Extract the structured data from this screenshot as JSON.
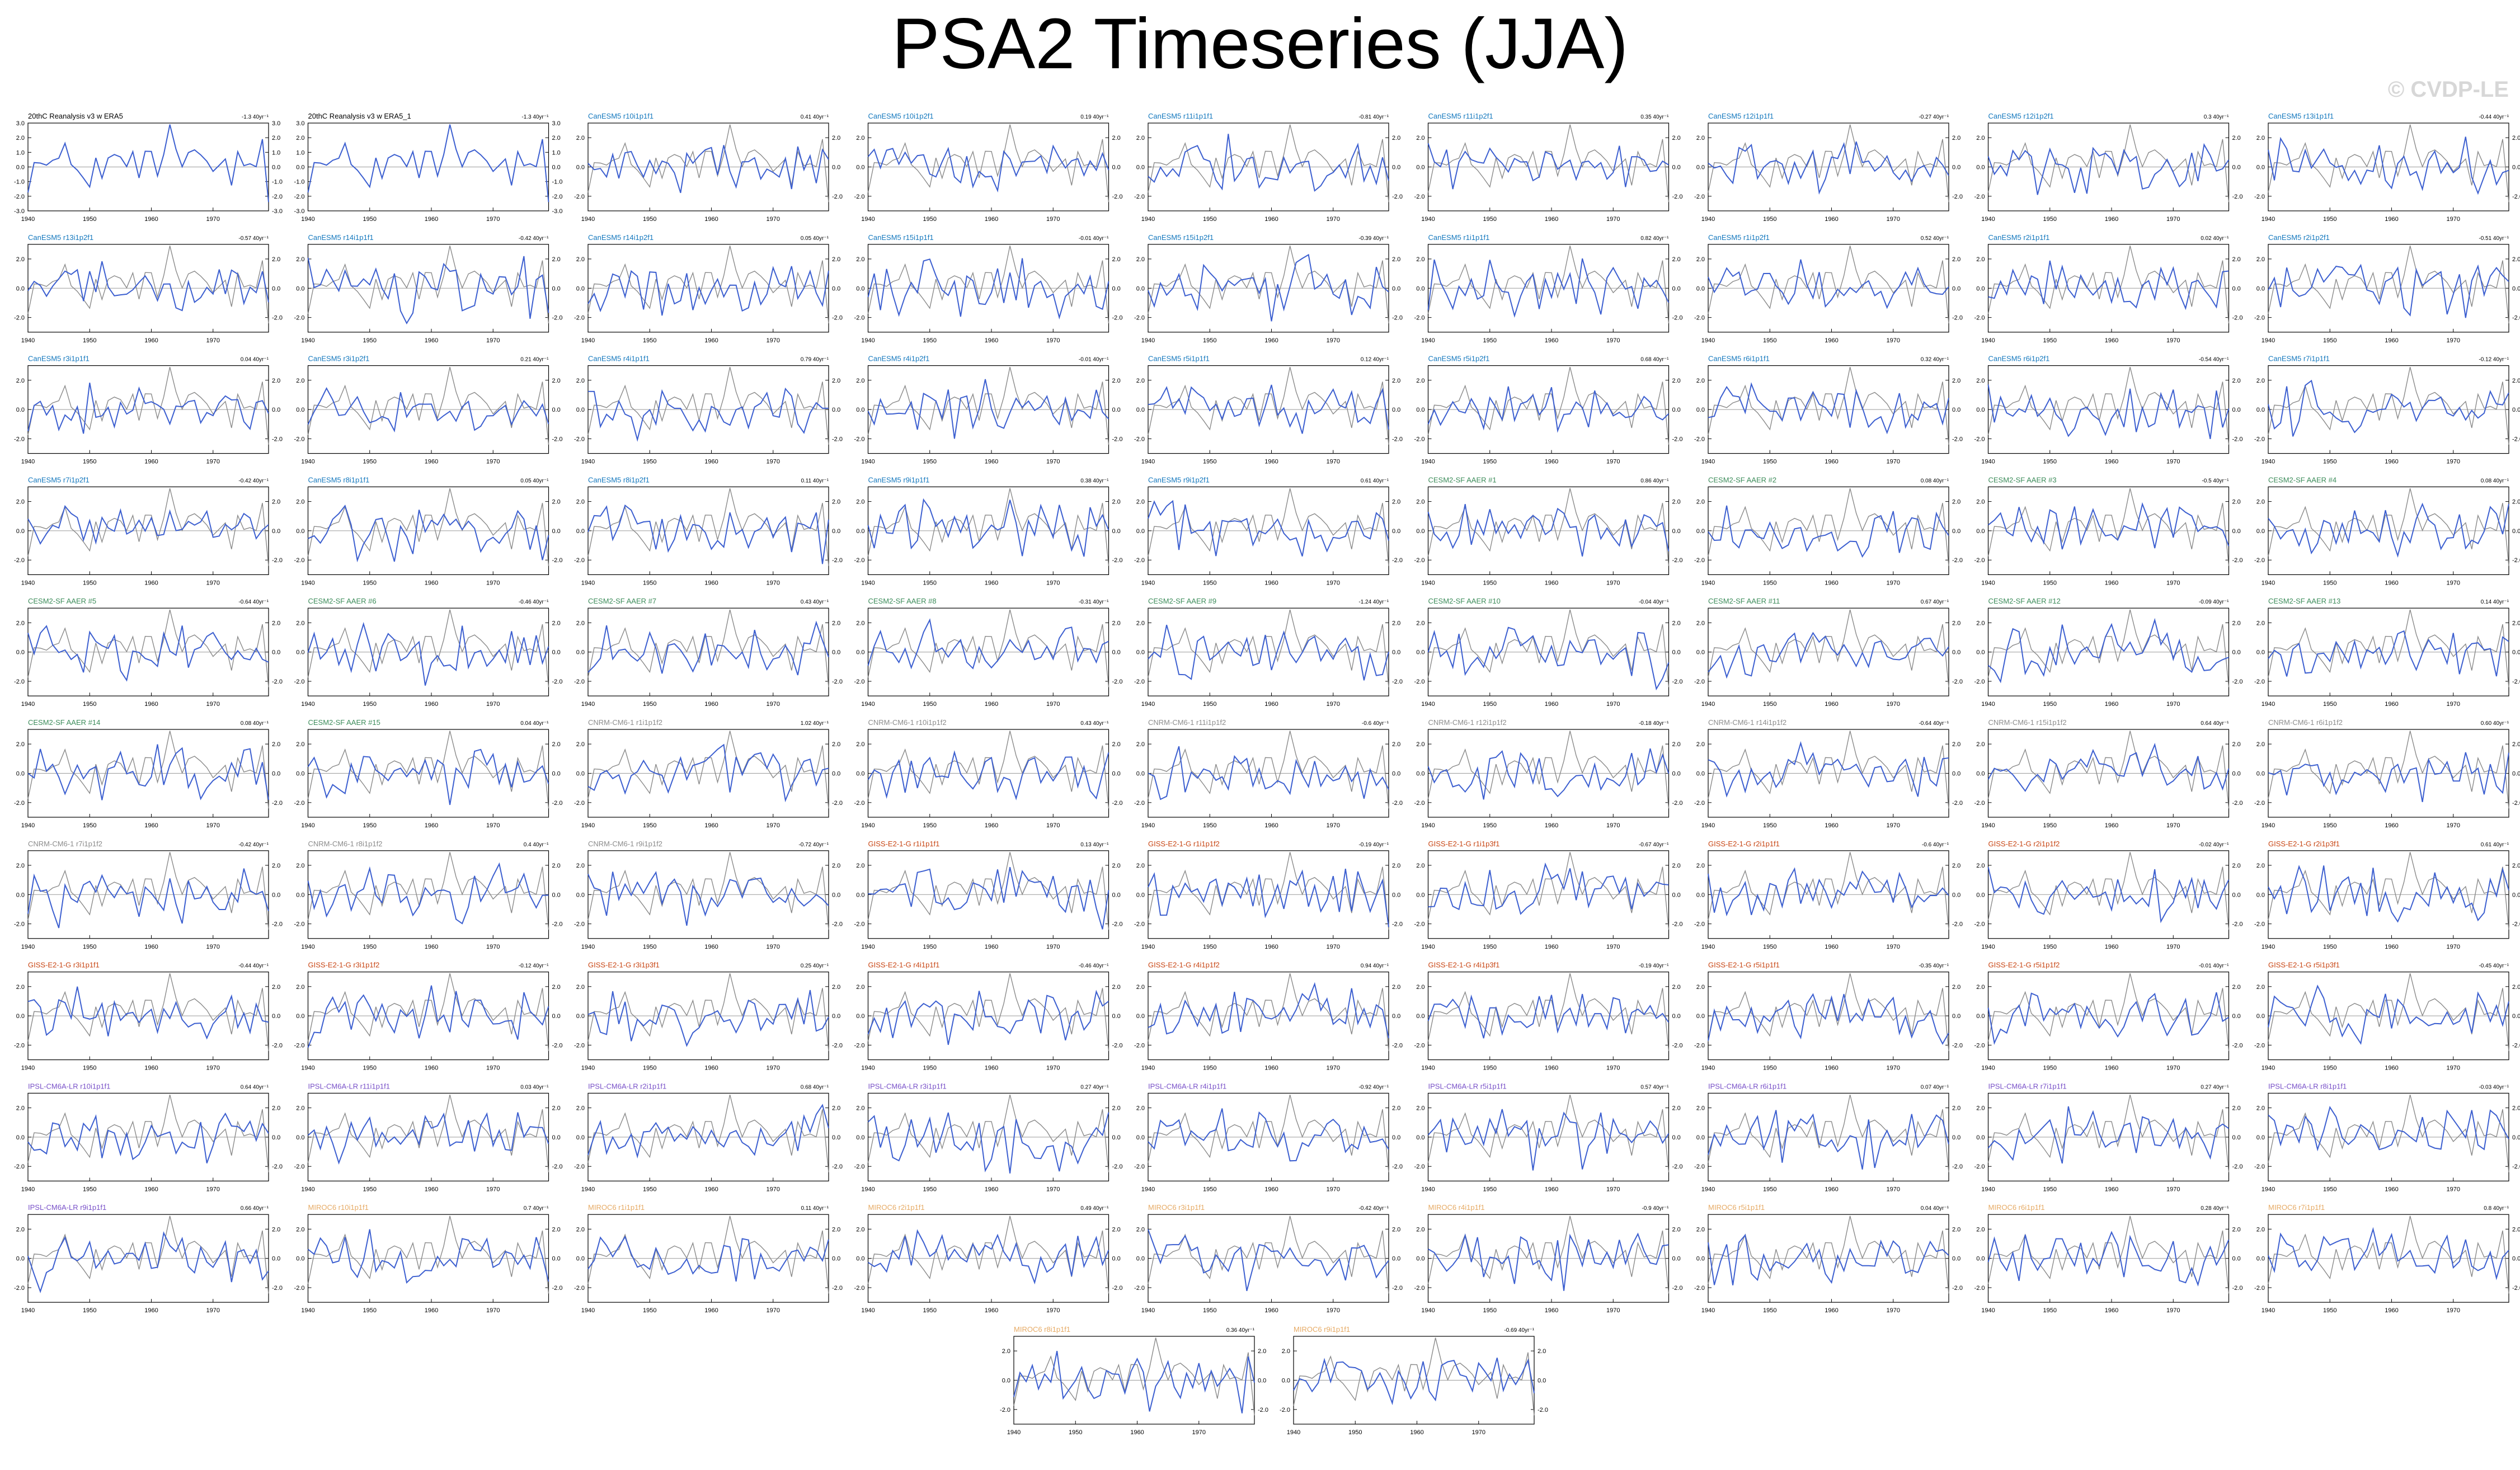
{
  "page": {
    "title": "PSA2 Timeseries (JJA)",
    "watermark": "© CVDP-LE"
  },
  "colors": {
    "obs": "#000000",
    "simulation": "#3c5fd0",
    "obs_overlay": "#8a8a8a",
    "CanESM5": "#1478be",
    "CESM2-SF AAER": "#3c8c5a",
    "CNRM-CM6-1": "#8c8c8c",
    "GISS-E2-1-G": "#c84614",
    "IPSL-CM6A-LR": "#7850c8",
    "MIROC6": "#e6aa64"
  },
  "chart_data": {
    "type": "line",
    "x_ticks": [
      1940,
      1950,
      1960,
      1970
    ],
    "x_range": [
      1940,
      1979
    ],
    "y_ticks_obs": [
      -3.0,
      -2.0,
      -1.0,
      0.0,
      1.0,
      2.0,
      3.0
    ],
    "y_ticks_sim": [
      -2.0,
      0.0,
      2.0
    ],
    "ylim": [
      -3.0,
      3.0
    ],
    "panels": [
      {
        "label": "20thC Reanalysis v3 w ERA5",
        "trend": "-1.3 40yr⁻¹",
        "group": "obs"
      },
      {
        "label": "20thC Reanalysis v3 w ERA5_1",
        "trend": "-1.3 40yr⁻¹",
        "group": "obs"
      },
      {
        "label": "CanESM5 r10i1p1f1",
        "trend": "0.41 40yr⁻¹",
        "group": "CanESM5"
      },
      {
        "label": "CanESM5 r10i1p2f1",
        "trend": "0.19 40yr⁻¹",
        "group": "CanESM5"
      },
      {
        "label": "CanESM5 r11i1p1f1",
        "trend": "-0.81 40yr⁻¹",
        "group": "CanESM5"
      },
      {
        "label": "CanESM5 r11i1p2f1",
        "trend": "0.35 40yr⁻¹",
        "group": "CanESM5"
      },
      {
        "label": "CanESM5 r12i1p1f1",
        "trend": "-0.27 40yr⁻¹",
        "group": "CanESM5"
      },
      {
        "label": "CanESM5 r12i1p2f1",
        "trend": "0.3 40yr⁻¹",
        "group": "CanESM5"
      },
      {
        "label": "CanESM5 r13i1p1f1",
        "trend": "-0.44 40yr⁻¹",
        "group": "CanESM5"
      },
      {
        "label": "CanESM5 r13i1p2f1",
        "trend": "-0.57 40yr⁻¹",
        "group": "CanESM5"
      },
      {
        "label": "CanESM5 r14i1p1f1",
        "trend": "-0.42 40yr⁻¹",
        "group": "CanESM5"
      },
      {
        "label": "CanESM5 r14i1p2f1",
        "trend": "0.05 40yr⁻¹",
        "group": "CanESM5"
      },
      {
        "label": "CanESM5 r15i1p1f1",
        "trend": "-0.01 40yr⁻¹",
        "group": "CanESM5"
      },
      {
        "label": "CanESM5 r15i1p2f1",
        "trend": "-0.39 40yr⁻¹",
        "group": "CanESM5"
      },
      {
        "label": "CanESM5 r1i1p1f1",
        "trend": "0.82 40yr⁻¹",
        "group": "CanESM5"
      },
      {
        "label": "CanESM5 r1i1p2f1",
        "trend": "0.52 40yr⁻¹",
        "group": "CanESM5"
      },
      {
        "label": "CanESM5 r2i1p1f1",
        "trend": "0.02 40yr⁻¹",
        "group": "CanESM5"
      },
      {
        "label": "CanESM5 r2i1p2f1",
        "trend": "-0.51 40yr⁻¹",
        "group": "CanESM5"
      },
      {
        "label": "CanESM5 r3i1p1f1",
        "trend": "0.04 40yr⁻¹",
        "group": "CanESM5"
      },
      {
        "label": "CanESM5 r3i1p2f1",
        "trend": "0.21 40yr⁻¹",
        "group": "CanESM5"
      },
      {
        "label": "CanESM5 r4i1p1f1",
        "trend": "0.79 40yr⁻¹",
        "group": "CanESM5"
      },
      {
        "label": "CanESM5 r4i1p2f1",
        "trend": "-0.01 40yr⁻¹",
        "group": "CanESM5"
      },
      {
        "label": "CanESM5 r5i1p1f1",
        "trend": "0.12 40yr⁻¹",
        "group": "CanESM5"
      },
      {
        "label": "CanESM5 r5i1p2f1",
        "trend": "0.68 40yr⁻¹",
        "group": "CanESM5"
      },
      {
        "label": "CanESM5 r6i1p1f1",
        "trend": "0.32 40yr⁻¹",
        "group": "CanESM5"
      },
      {
        "label": "CanESM5 r6i1p2f1",
        "trend": "-0.54 40yr⁻¹",
        "group": "CanESM5"
      },
      {
        "label": "CanESM5 r7i1p1f1",
        "trend": "-0.12 40yr⁻¹",
        "group": "CanESM5"
      },
      {
        "label": "CanESM5 r7i1p2f1",
        "trend": "-0.42 40yr⁻¹",
        "group": "CanESM5"
      },
      {
        "label": "CanESM5 r8i1p1f1",
        "trend": "0.05 40yr⁻¹",
        "group": "CanESM5"
      },
      {
        "label": "CanESM5 r8i1p2f1",
        "trend": "0.11 40yr⁻¹",
        "group": "CanESM5"
      },
      {
        "label": "CanESM5 r9i1p1f1",
        "trend": "0.38 40yr⁻¹",
        "group": "CanESM5"
      },
      {
        "label": "CanESM5 r9i1p2f1",
        "trend": "0.61 40yr⁻¹",
        "group": "CanESM5"
      },
      {
        "label": "CESM2-SF AAER #1",
        "trend": "0.86 40yr⁻¹",
        "group": "CESM2-SF AAER"
      },
      {
        "label": "CESM2-SF AAER #2",
        "trend": "0.08 40yr⁻¹",
        "group": "CESM2-SF AAER"
      },
      {
        "label": "CESM2-SF AAER #3",
        "trend": "-0.5 40yr⁻¹",
        "group": "CESM2-SF AAER"
      },
      {
        "label": "CESM2-SF AAER #4",
        "trend": "0.08 40yr⁻¹",
        "group": "CESM2-SF AAER"
      },
      {
        "label": "CESM2-SF AAER #5",
        "trend": "-0.64 40yr⁻¹",
        "group": "CESM2-SF AAER"
      },
      {
        "label": "CESM2-SF AAER #6",
        "trend": "-0.46 40yr⁻¹",
        "group": "CESM2-SF AAER"
      },
      {
        "label": "CESM2-SF AAER #7",
        "trend": "0.43 40yr⁻¹",
        "group": "CESM2-SF AAER"
      },
      {
        "label": "CESM2-SF AAER #8",
        "trend": "-0.31 40yr⁻¹",
        "group": "CESM2-SF AAER"
      },
      {
        "label": "CESM2-SF AAER #9",
        "trend": "-1.24 40yr⁻¹",
        "group": "CESM2-SF AAER"
      },
      {
        "label": "CESM2-SF AAER #10",
        "trend": "-0.04 40yr⁻¹",
        "group": "CESM2-SF AAER"
      },
      {
        "label": "CESM2-SF AAER #11",
        "trend": "0.67 40yr⁻¹",
        "group": "CESM2-SF AAER"
      },
      {
        "label": "CESM2-SF AAER #12",
        "trend": "-0.09 40yr⁻¹",
        "group": "CESM2-SF AAER"
      },
      {
        "label": "CESM2-SF AAER #13",
        "trend": "0.14 40yr⁻¹",
        "group": "CESM2-SF AAER"
      },
      {
        "label": "CESM2-SF AAER #14",
        "trend": "0.08 40yr⁻¹",
        "group": "CESM2-SF AAER"
      },
      {
        "label": "CESM2-SF AAER #15",
        "trend": "0.04 40yr⁻¹",
        "group": "CESM2-SF AAER"
      },
      {
        "label": "CNRM-CM6-1 r1i1p1f2",
        "trend": "1.02 40yr⁻¹",
        "group": "CNRM-CM6-1"
      },
      {
        "label": "CNRM-CM6-1 r10i1p1f2",
        "trend": "0.43 40yr⁻¹",
        "group": "CNRM-CM6-1"
      },
      {
        "label": "CNRM-CM6-1 r11i1p1f2",
        "trend": "-0.6 40yr⁻¹",
        "group": "CNRM-CM6-1"
      },
      {
        "label": "CNRM-CM6-1 r12i1p1f2",
        "trend": "-0.18 40yr⁻¹",
        "group": "CNRM-CM6-1"
      },
      {
        "label": "CNRM-CM6-1 r14i1p1f2",
        "trend": "-0.64 40yr⁻¹",
        "group": "CNRM-CM6-1"
      },
      {
        "label": "CNRM-CM6-1 r15i1p1f2",
        "trend": "0.64 40yr⁻¹",
        "group": "CNRM-CM6-1"
      },
      {
        "label": "CNRM-CM6-1 r6i1p1f2",
        "trend": "0.60 40yr⁻¹",
        "group": "CNRM-CM6-1"
      },
      {
        "label": "CNRM-CM6-1 r7i1p1f2",
        "trend": "-0.42 40yr⁻¹",
        "group": "CNRM-CM6-1"
      },
      {
        "label": "CNRM-CM6-1 r8i1p1f2",
        "trend": "0.4 40yr⁻¹",
        "group": "CNRM-CM6-1"
      },
      {
        "label": "CNRM-CM6-1 r9i1p1f2",
        "trend": "-0.72 40yr⁻¹",
        "group": "CNRM-CM6-1"
      },
      {
        "label": "GISS-E2-1-G r1i1p1f1",
        "trend": "0.13 40yr⁻¹",
        "group": "GISS-E2-1-G"
      },
      {
        "label": "GISS-E2-1-G r1i1p1f2",
        "trend": "-0.19 40yr⁻¹",
        "group": "GISS-E2-1-G"
      },
      {
        "label": "GISS-E2-1-G r1i1p3f1",
        "trend": "-0.67 40yr⁻¹",
        "group": "GISS-E2-1-G"
      },
      {
        "label": "GISS-E2-1-G r2i1p1f1",
        "trend": "-0.6 40yr⁻¹",
        "group": "GISS-E2-1-G"
      },
      {
        "label": "GISS-E2-1-G r2i1p1f2",
        "trend": "-0.02 40yr⁻¹",
        "group": "GISS-E2-1-G"
      },
      {
        "label": "GISS-E2-1-G r2i1p3f1",
        "trend": "0.61 40yr⁻¹",
        "group": "GISS-E2-1-G"
      },
      {
        "label": "GISS-E2-1-G r3i1p1f1",
        "trend": "-0.44 40yr⁻¹",
        "group": "GISS-E2-1-G"
      },
      {
        "label": "GISS-E2-1-G r3i1p1f2",
        "trend": "-0.12 40yr⁻¹",
        "group": "GISS-E2-1-G"
      },
      {
        "label": "GISS-E2-1-G r3i1p3f1",
        "trend": "0.25 40yr⁻¹",
        "group": "GISS-E2-1-G"
      },
      {
        "label": "GISS-E2-1-G r4i1p1f1",
        "trend": "-0.46 40yr⁻¹",
        "group": "GISS-E2-1-G"
      },
      {
        "label": "GISS-E2-1-G r4i1p1f2",
        "trend": "0.94 40yr⁻¹",
        "group": "GISS-E2-1-G"
      },
      {
        "label": "GISS-E2-1-G r4i1p3f1",
        "trend": "-0.19 40yr⁻¹",
        "group": "GISS-E2-1-G"
      },
      {
        "label": "GISS-E2-1-G r5i1p1f1",
        "trend": "-0.35 40yr⁻¹",
        "group": "GISS-E2-1-G"
      },
      {
        "label": "GISS-E2-1-G r5i1p1f2",
        "trend": "-0.01 40yr⁻¹",
        "group": "GISS-E2-1-G"
      },
      {
        "label": "GISS-E2-1-G r5i1p3f1",
        "trend": "-0.45 40yr⁻¹",
        "group": "GISS-E2-1-G"
      },
      {
        "label": "IPSL-CM6A-LR r10i1p1f1",
        "trend": "0.64 40yr⁻¹",
        "group": "IPSL-CM6A-LR"
      },
      {
        "label": "IPSL-CM6A-LR r11i1p1f1",
        "trend": "0.03 40yr⁻¹",
        "group": "IPSL-CM6A-LR"
      },
      {
        "label": "IPSL-CM6A-LR r2i1p1f1",
        "trend": "0.68 40yr⁻¹",
        "group": "IPSL-CM6A-LR"
      },
      {
        "label": "IPSL-CM6A-LR r3i1p1f1",
        "trend": "0.27 40yr⁻¹",
        "group": "IPSL-CM6A-LR"
      },
      {
        "label": "IPSL-CM6A-LR r4i1p1f1",
        "trend": "-0.92 40yr⁻¹",
        "group": "IPSL-CM6A-LR"
      },
      {
        "label": "IPSL-CM6A-LR r5i1p1f1",
        "trend": "0.57 40yr⁻¹",
        "group": "IPSL-CM6A-LR"
      },
      {
        "label": "IPSL-CM6A-LR r6i1p1f1",
        "trend": "0.07 40yr⁻¹",
        "group": "IPSL-CM6A-LR"
      },
      {
        "label": "IPSL-CM6A-LR r7i1p1f1",
        "trend": "0.27 40yr⁻¹",
        "group": "IPSL-CM6A-LR"
      },
      {
        "label": "IPSL-CM6A-LR r8i1p1f1",
        "trend": "-0.03 40yr⁻¹",
        "group": "IPSL-CM6A-LR"
      },
      {
        "label": "IPSL-CM6A-LR r9i1p1f1",
        "trend": "0.66 40yr⁻¹",
        "group": "IPSL-CM6A-LR"
      },
      {
        "label": "MIROC6 r10i1p1f1",
        "trend": "0.7 40yr⁻¹",
        "group": "MIROC6"
      },
      {
        "label": "MIROC6 r1i1p1f1",
        "trend": "0.11 40yr⁻¹",
        "group": "MIROC6"
      },
      {
        "label": "MIROC6 r2i1p1f1",
        "trend": "0.49 40yr⁻¹",
        "group": "MIROC6"
      },
      {
        "label": "MIROC6 r3i1p1f1",
        "trend": "-0.42 40yr⁻¹",
        "group": "MIROC6"
      },
      {
        "label": "MIROC6 r4i1p1f1",
        "trend": "-0.9 40yr⁻¹",
        "group": "MIROC6"
      },
      {
        "label": "MIROC6 r5i1p1f1",
        "trend": "0.04 40yr⁻¹",
        "group": "MIROC6"
      },
      {
        "label": "MIROC6 r6i1p1f1",
        "trend": "0.28 40yr⁻¹",
        "group": "MIROC6"
      },
      {
        "label": "MIROC6 r7i1p1f1",
        "trend": "0.8 40yr⁻¹",
        "group": "MIROC6"
      },
      {
        "label": "MIROC6 r8i1p1f1",
        "trend": "0.36 40yr⁻¹",
        "group": "MIROC6"
      },
      {
        "label": "MIROC6 r9i1p1f1",
        "trend": "-0.69 40yr⁻¹",
        "group": "MIROC6"
      }
    ]
  }
}
